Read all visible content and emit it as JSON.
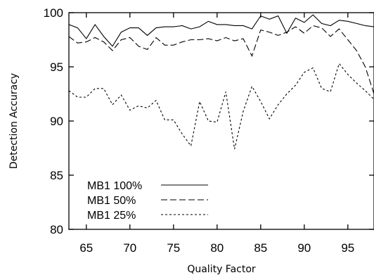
{
  "chart_data": {
    "type": "line",
    "title": "",
    "xlabel": "Quality Factor",
    "ylabel": "Detection Accuracy",
    "xlim": [
      63,
      98
    ],
    "ylim": [
      80,
      100
    ],
    "xticks": [
      "65",
      "70",
      "75",
      "80",
      "85",
      "90",
      "95"
    ],
    "yticks": [
      "80",
      "85",
      "90",
      "95",
      "100"
    ],
    "grid": false,
    "legend_position": "bottom-left",
    "x": [
      63,
      64,
      65,
      66,
      67,
      68,
      69,
      70,
      71,
      72,
      73,
      74,
      75,
      76,
      77,
      78,
      79,
      80,
      81,
      82,
      83,
      84,
      85,
      86,
      87,
      88,
      89,
      90,
      91,
      92,
      93,
      94,
      95,
      96,
      97,
      98
    ],
    "series": [
      {
        "name": "MB1 100%",
        "style": "solid",
        "values": [
          98.9,
          98.6,
          97.6,
          98.9,
          97.8,
          96.9,
          98.2,
          98.6,
          98.6,
          97.9,
          98.6,
          98.7,
          98.7,
          98.8,
          98.5,
          98.7,
          99.2,
          98.9,
          98.9,
          98.8,
          98.8,
          98.5,
          99.7,
          99.4,
          99.7,
          98.1,
          99.5,
          99.1,
          99.8,
          99.0,
          98.8,
          99.3,
          99.2,
          99.0,
          98.8,
          98.7
        ]
      },
      {
        "name": "MB1 50%",
        "style": "dashed",
        "values": [
          97.8,
          97.2,
          97.3,
          97.7,
          97.3,
          96.5,
          97.5,
          97.7,
          96.9,
          96.6,
          97.7,
          97.0,
          97.0,
          97.3,
          97.5,
          97.5,
          97.6,
          97.4,
          97.7,
          97.4,
          97.6,
          96.0,
          98.4,
          98.2,
          97.9,
          98.2,
          98.7,
          98.1,
          98.8,
          98.6,
          97.8,
          98.5,
          97.5,
          96.5,
          95.0,
          92.5
        ]
      },
      {
        "name": "MB1 25%",
        "style": "dotted",
        "values": [
          92.8,
          92.2,
          92.2,
          93.0,
          93.0,
          91.5,
          92.4,
          91.0,
          91.4,
          91.2,
          91.9,
          90.1,
          90.1,
          88.8,
          87.7,
          91.8,
          90.0,
          89.9,
          92.7,
          87.4,
          90.9,
          93.2,
          91.8,
          90.2,
          91.5,
          92.5,
          93.3,
          94.5,
          94.9,
          93.0,
          92.7,
          95.3,
          94.3,
          93.5,
          92.8,
          92.0
        ]
      }
    ]
  }
}
